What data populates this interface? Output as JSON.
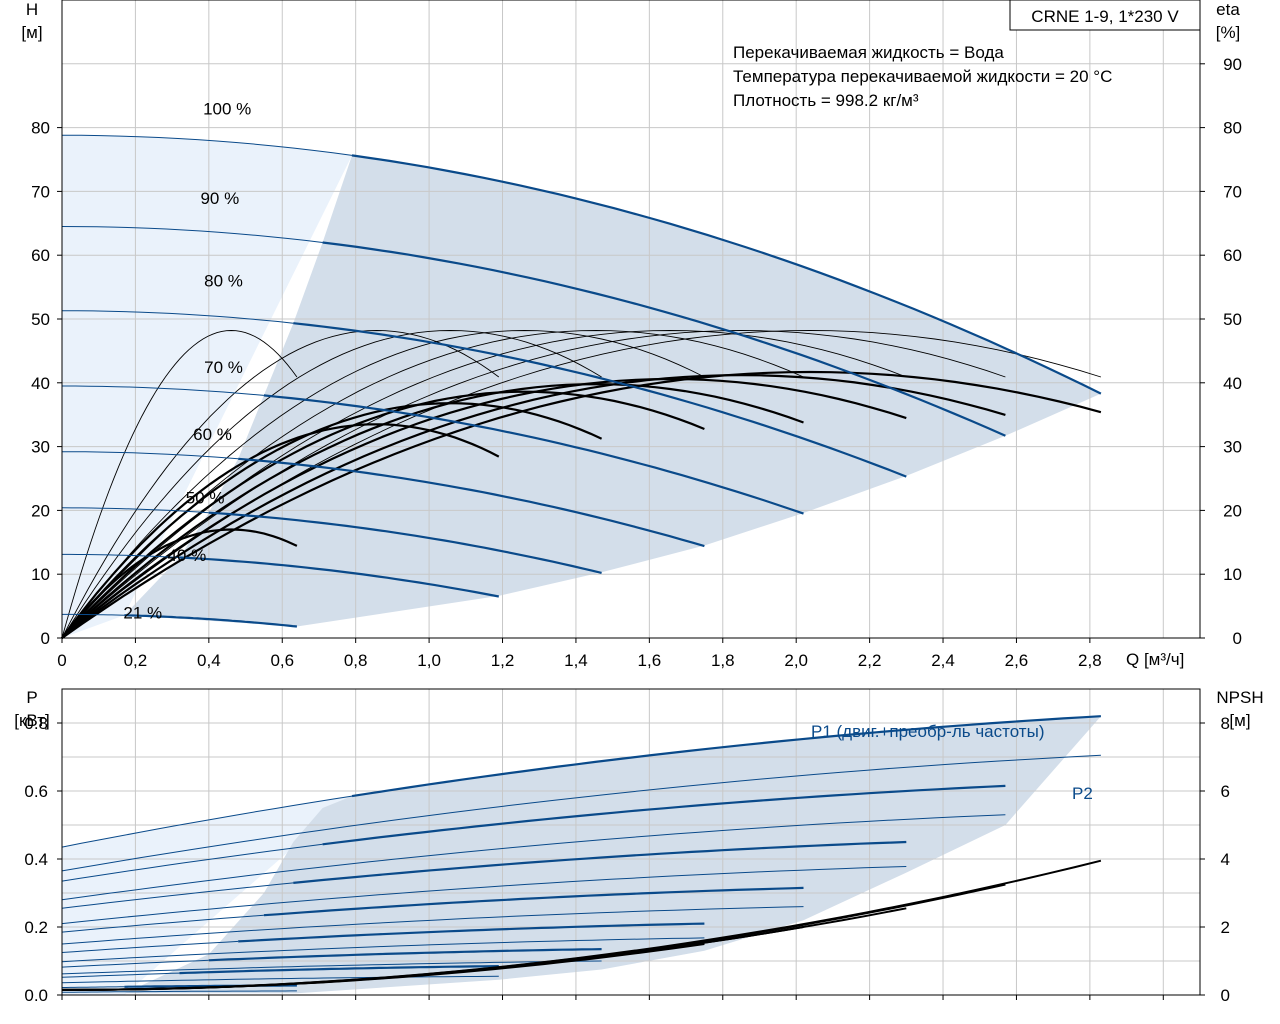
{
  "chart_data": [
    {
      "type": "line",
      "title": "CRNE 1-9, 1*230 V",
      "xlabel": "Q [м³/ч]",
      "ylabel": "H",
      "ylabel_unit": "[м]",
      "y2label": "eta",
      "y2label_unit": "[%]",
      "xlim": [
        0,
        3.1
      ],
      "ylim": [
        0,
        100
      ],
      "y2lim": [
        0,
        100
      ],
      "x_ticks": [
        "0",
        "0,2",
        "0,4",
        "0,6",
        "0,8",
        "1,0",
        "1,2",
        "1,4",
        "1,6",
        "1,8",
        "2,0",
        "2,2",
        "2,4",
        "2,6",
        "2,8"
      ],
      "y_ticks": [
        "0",
        "10",
        "20",
        "30",
        "40",
        "50",
        "60",
        "70",
        "80"
      ],
      "y2_ticks": [
        "0",
        "10",
        "20",
        "30",
        "40",
        "50",
        "60",
        "70",
        "80",
        "90"
      ],
      "grid": true,
      "annotations": [
        "Перекачиваемая жидкость = Вода",
        "Температура перекачиваемой жидкости = 20 °C",
        "Плотность = 998.2 кг/м³"
      ],
      "head_curves": [
        {
          "name": "100 %",
          "h0": 78.8,
          "qmax": 2.83,
          "hend": 38.3,
          "qlo": 0.79
        },
        {
          "name": "90 %",
          "h0": 64.5,
          "qmax": 2.57,
          "hend": 31.7,
          "qlo": 0.71
        },
        {
          "name": "80 %",
          "h0": 51.3,
          "qmax": 2.3,
          "hend": 25.3,
          "qlo": 0.63
        },
        {
          "name": "70 %",
          "h0": 39.5,
          "qmax": 2.02,
          "hend": 19.5,
          "qlo": 0.55
        },
        {
          "name": "60 %",
          "h0": 29.2,
          "qmax": 1.75,
          "hend": 14.4,
          "qlo": 0.48
        },
        {
          "name": "50 %",
          "h0": 20.4,
          "qmax": 1.47,
          "hend": 10.2,
          "qlo": 0.4
        },
        {
          "name": "40 %",
          "h0": 13.1,
          "qmax": 1.19,
          "hend": 6.5,
          "qlo": 0.32
        },
        {
          "name": "21 %",
          "h0": 3.7,
          "qmax": 0.64,
          "hend": 1.8,
          "qlo": 0.17
        }
      ],
      "eta_curves": [
        {
          "qmax": 2.83,
          "peak": 41.7,
          "bold": true
        },
        {
          "qmax": 2.57,
          "peak": 41.2,
          "bold": true
        },
        {
          "qmax": 2.3,
          "peak": 40.6,
          "bold": true
        },
        {
          "qmax": 2.02,
          "peak": 39.8,
          "bold": true
        },
        {
          "qmax": 1.75,
          "peak": 38.6,
          "bold": true
        },
        {
          "qmax": 1.47,
          "peak": 36.8,
          "bold": true
        },
        {
          "qmax": 1.19,
          "peak": 33.5,
          "bold": true
        },
        {
          "qmax": 0.64,
          "peak": 17.0,
          "bold": true
        },
        {
          "qmax": 2.83,
          "peak": 48.2,
          "bold": false
        },
        {
          "qmax": 2.57,
          "peak": 48.2,
          "bold": false
        },
        {
          "qmax": 2.3,
          "peak": 48.2,
          "bold": false
        },
        {
          "qmax": 2.02,
          "peak": 48.2,
          "bold": false
        },
        {
          "qmax": 1.75,
          "peak": 48.2,
          "bold": false
        },
        {
          "qmax": 1.47,
          "peak": 48.2,
          "bold": false
        },
        {
          "qmax": 1.19,
          "peak": 48.2,
          "bold": false
        },
        {
          "qmax": 0.64,
          "peak": 48.2,
          "bold": false
        }
      ]
    },
    {
      "type": "line",
      "ylabel": "P",
      "ylabel_unit": "[кВт]",
      "y2label": "NPSH",
      "y2label_unit": "[м]",
      "xlim": [
        0,
        3.1
      ],
      "ylim": [
        0,
        0.9
      ],
      "y2lim": [
        0,
        9
      ],
      "y_ticks": [
        "0.0",
        "0.2",
        "0.4",
        "0.6",
        "0.8"
      ],
      "y2_ticks": [
        "0",
        "2",
        "4",
        "6",
        "8"
      ],
      "grid": true,
      "series_labels": [
        "P1 (двиг.+преобр-ль частоты)",
        "P2"
      ],
      "power_curves": [
        {
          "p1_0": 0.435,
          "p1_end": 0.82,
          "p2_0": 0.365,
          "p2_end": 0.705,
          "qmax": 2.83,
          "qlo": 0.79
        },
        {
          "p1_0": 0.335,
          "p1_end": 0.615,
          "p2_0": 0.28,
          "p2_end": 0.53,
          "qmax": 2.57,
          "qlo": 0.71
        },
        {
          "p1_0": 0.255,
          "p1_end": 0.45,
          "p2_0": 0.21,
          "p2_end": 0.378,
          "qmax": 2.3,
          "qlo": 0.63
        },
        {
          "p1_0": 0.185,
          "p1_end": 0.315,
          "p2_0": 0.15,
          "p2_end": 0.26,
          "qmax": 2.02,
          "qlo": 0.55
        },
        {
          "p1_0": 0.125,
          "p1_end": 0.21,
          "p2_0": 0.098,
          "p2_end": 0.168,
          "qmax": 1.75,
          "qlo": 0.48
        },
        {
          "p1_0": 0.082,
          "p1_end": 0.135,
          "p2_0": 0.062,
          "p2_end": 0.1,
          "qmax": 1.47,
          "qlo": 0.4
        },
        {
          "p1_0": 0.052,
          "p1_end": 0.085,
          "p2_0": 0.036,
          "p2_end": 0.055,
          "qmax": 1.19,
          "qlo": 0.32
        },
        {
          "p1_0": 0.022,
          "p1_end": 0.028,
          "p2_0": 0.008,
          "p2_end": 0.012,
          "qmax": 0.64,
          "qlo": 0.17
        }
      ],
      "npsh_curves": [
        {
          "qmax": 2.83,
          "end": 3.95
        },
        {
          "qmax": 2.57,
          "end": 3.25
        },
        {
          "qmax": 2.3,
          "end": 2.55
        },
        {
          "qmax": 2.02,
          "end": 2.0
        },
        {
          "qmax": 1.75,
          "end": 1.5
        }
      ]
    }
  ]
}
